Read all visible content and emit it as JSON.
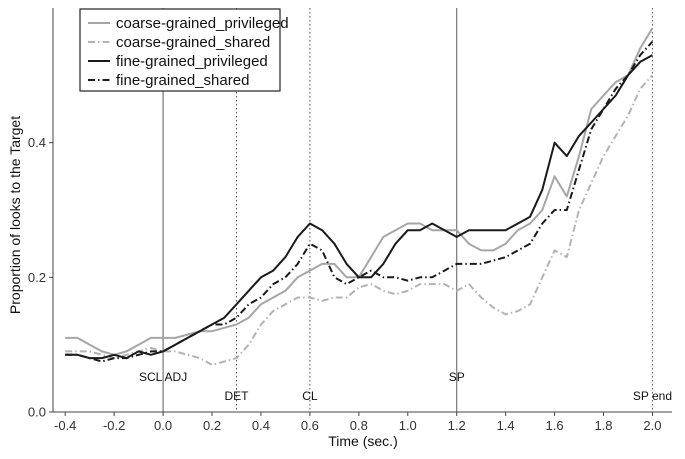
{
  "chart_data": {
    "type": "line",
    "title": "",
    "xlabel": "Time (sec.)",
    "ylabel": "Proportion of looks to the Target",
    "xlim": [
      -0.45,
      2.08
    ],
    "ylim": [
      0.0,
      0.6
    ],
    "x_ticks": [
      -0.4,
      -0.2,
      0.0,
      0.2,
      0.4,
      0.6,
      0.8,
      1.0,
      1.2,
      1.4,
      1.6,
      1.8,
      2.0
    ],
    "x_tick_labels": [
      "-0.4",
      "-0.2",
      "0.0",
      "0.2",
      "0.4",
      "0.6",
      "0.8",
      "1.0",
      "1.2",
      "1.4",
      "1.6",
      "1.8",
      "2.0"
    ],
    "y_ticks": [
      0.0,
      0.2,
      0.4
    ],
    "y_tick_labels": [
      "0.0",
      "0.2",
      "0.4"
    ],
    "grid": false,
    "legend_position": "top-left",
    "events": [
      {
        "label": "SCL ADJ",
        "x": 0.0,
        "style": "solid",
        "label_row": "upper"
      },
      {
        "label": "DET",
        "x": 0.3,
        "style": "dotted",
        "label_row": "lower"
      },
      {
        "label": "CL",
        "x": 0.6,
        "style": "dotted",
        "label_row": "lower"
      },
      {
        "label": "SP",
        "x": 1.2,
        "style": "solid",
        "label_row": "upper"
      },
      {
        "label": "SP end",
        "x": 2.0,
        "style": "dotted",
        "label_row": "lower"
      }
    ],
    "series": [
      {
        "name": "coarse-grained_privileged",
        "color": "#a6a6a6",
        "dash": "solid",
        "x": [
          -0.4,
          -0.35,
          -0.3,
          -0.25,
          -0.2,
          -0.15,
          -0.1,
          -0.05,
          0.0,
          0.05,
          0.1,
          0.15,
          0.2,
          0.25,
          0.3,
          0.35,
          0.4,
          0.45,
          0.5,
          0.55,
          0.6,
          0.65,
          0.7,
          0.75,
          0.8,
          0.85,
          0.9,
          0.95,
          1.0,
          1.05,
          1.1,
          1.15,
          1.2,
          1.25,
          1.3,
          1.35,
          1.4,
          1.45,
          1.5,
          1.55,
          1.6,
          1.65,
          1.7,
          1.75,
          1.8,
          1.85,
          1.9,
          1.95,
          2.0
        ],
        "y": [
          0.11,
          0.11,
          0.1,
          0.09,
          0.085,
          0.09,
          0.1,
          0.11,
          0.11,
          0.11,
          0.115,
          0.12,
          0.12,
          0.125,
          0.13,
          0.14,
          0.16,
          0.17,
          0.18,
          0.2,
          0.21,
          0.22,
          0.22,
          0.2,
          0.2,
          0.23,
          0.26,
          0.27,
          0.28,
          0.28,
          0.27,
          0.27,
          0.27,
          0.25,
          0.24,
          0.24,
          0.25,
          0.27,
          0.28,
          0.3,
          0.35,
          0.32,
          0.38,
          0.45,
          0.47,
          0.49,
          0.5,
          0.54,
          0.57
        ]
      },
      {
        "name": "coarse-grained_shared",
        "color": "#b3b3b3",
        "dash": "dashdot",
        "x": [
          -0.4,
          -0.35,
          -0.3,
          -0.25,
          -0.2,
          -0.15,
          -0.1,
          -0.05,
          0.0,
          0.05,
          0.1,
          0.15,
          0.2,
          0.25,
          0.3,
          0.35,
          0.4,
          0.45,
          0.5,
          0.55,
          0.6,
          0.65,
          0.7,
          0.75,
          0.8,
          0.85,
          0.9,
          0.95,
          1.0,
          1.05,
          1.1,
          1.15,
          1.2,
          1.25,
          1.3,
          1.35,
          1.4,
          1.45,
          1.5,
          1.55,
          1.6,
          1.65,
          1.7,
          1.75,
          1.8,
          1.85,
          1.9,
          1.95,
          2.0
        ],
        "y": [
          0.09,
          0.09,
          0.09,
          0.085,
          0.08,
          0.085,
          0.09,
          0.095,
          0.09,
          0.09,
          0.085,
          0.08,
          0.07,
          0.075,
          0.08,
          0.1,
          0.13,
          0.15,
          0.16,
          0.17,
          0.17,
          0.165,
          0.17,
          0.17,
          0.185,
          0.19,
          0.18,
          0.175,
          0.18,
          0.19,
          0.19,
          0.19,
          0.18,
          0.19,
          0.17,
          0.155,
          0.145,
          0.15,
          0.16,
          0.2,
          0.24,
          0.23,
          0.3,
          0.34,
          0.38,
          0.41,
          0.44,
          0.48,
          0.5
        ]
      },
      {
        "name": "fine-grained_privileged",
        "color": "#1a1a1a",
        "dash": "solid",
        "x": [
          -0.4,
          -0.35,
          -0.3,
          -0.25,
          -0.2,
          -0.15,
          -0.1,
          -0.05,
          0.0,
          0.05,
          0.1,
          0.15,
          0.2,
          0.25,
          0.3,
          0.35,
          0.4,
          0.45,
          0.5,
          0.55,
          0.6,
          0.65,
          0.7,
          0.75,
          0.8,
          0.85,
          0.9,
          0.95,
          1.0,
          1.05,
          1.1,
          1.15,
          1.2,
          1.25,
          1.3,
          1.35,
          1.4,
          1.45,
          1.5,
          1.55,
          1.6,
          1.65,
          1.7,
          1.75,
          1.8,
          1.85,
          1.9,
          1.95,
          2.0
        ],
        "y": [
          0.085,
          0.085,
          0.08,
          0.08,
          0.085,
          0.08,
          0.09,
          0.085,
          0.09,
          0.1,
          0.11,
          0.12,
          0.13,
          0.14,
          0.16,
          0.18,
          0.2,
          0.21,
          0.23,
          0.26,
          0.28,
          0.27,
          0.25,
          0.22,
          0.2,
          0.2,
          0.22,
          0.25,
          0.27,
          0.27,
          0.28,
          0.27,
          0.26,
          0.27,
          0.27,
          0.27,
          0.27,
          0.28,
          0.29,
          0.33,
          0.4,
          0.38,
          0.41,
          0.43,
          0.45,
          0.47,
          0.5,
          0.52,
          0.53
        ]
      },
      {
        "name": "fine-grained_shared",
        "color": "#1a1a1a",
        "dash": "dashdot",
        "x": [
          -0.4,
          -0.35,
          -0.3,
          -0.25,
          -0.2,
          -0.15,
          -0.1,
          -0.05,
          0.0,
          0.05,
          0.1,
          0.15,
          0.2,
          0.25,
          0.3,
          0.35,
          0.4,
          0.45,
          0.5,
          0.55,
          0.6,
          0.65,
          0.7,
          0.75,
          0.8,
          0.85,
          0.9,
          0.95,
          1.0,
          1.05,
          1.1,
          1.15,
          1.2,
          1.25,
          1.3,
          1.35,
          1.4,
          1.45,
          1.5,
          1.55,
          1.6,
          1.65,
          1.7,
          1.75,
          1.8,
          1.85,
          1.9,
          1.95,
          2.0
        ],
        "y": [
          0.085,
          0.085,
          0.08,
          0.075,
          0.08,
          0.08,
          0.085,
          0.09,
          0.09,
          0.1,
          0.11,
          0.12,
          0.13,
          0.13,
          0.14,
          0.16,
          0.17,
          0.19,
          0.2,
          0.22,
          0.25,
          0.24,
          0.2,
          0.19,
          0.2,
          0.21,
          0.2,
          0.2,
          0.195,
          0.2,
          0.2,
          0.21,
          0.22,
          0.22,
          0.22,
          0.225,
          0.23,
          0.24,
          0.25,
          0.28,
          0.3,
          0.3,
          0.36,
          0.42,
          0.45,
          0.48,
          0.5,
          0.53,
          0.55
        ]
      }
    ]
  }
}
